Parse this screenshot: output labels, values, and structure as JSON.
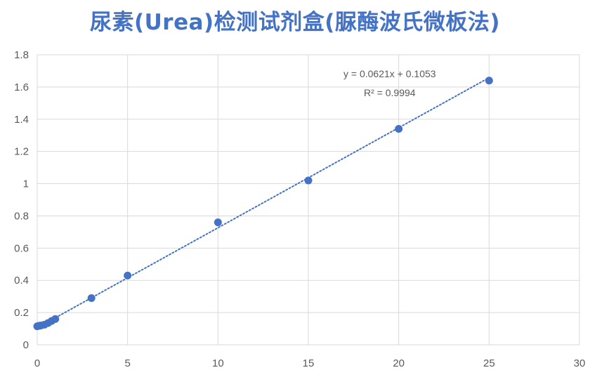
{
  "chart_data": {
    "type": "scatter",
    "title": "尿素(Urea)检测试剂盒(脲酶波氏微板法)",
    "xlabel": "",
    "ylabel": "",
    "xlim": [
      0,
      30
    ],
    "ylim": [
      0,
      1.8
    ],
    "x_ticks": [
      0,
      5,
      10,
      15,
      20,
      25,
      30
    ],
    "y_ticks": [
      0,
      0.2,
      0.4,
      0.6,
      0.8,
      1,
      1.2,
      1.4,
      1.6,
      1.8
    ],
    "x_tick_labels": [
      "0",
      "5",
      "10",
      "15",
      "20",
      "25",
      "30"
    ],
    "y_tick_labels": [
      "0",
      "0.2",
      "0.4",
      "0.6",
      "0.8",
      "1",
      "1.2",
      "1.4",
      "1.6",
      "1.8"
    ],
    "grid": true,
    "series": [
      {
        "points": [
          {
            "x": 0,
            "y": 0.115
          },
          {
            "x": 0.1,
            "y": 0.118
          },
          {
            "x": 0.2,
            "y": 0.12
          },
          {
            "x": 0.4,
            "y": 0.125
          },
          {
            "x": 0.6,
            "y": 0.135
          },
          {
            "x": 0.8,
            "y": 0.148
          },
          {
            "x": 1,
            "y": 0.16
          },
          {
            "x": 3,
            "y": 0.29
          },
          {
            "x": 5,
            "y": 0.43
          },
          {
            "x": 10,
            "y": 0.76
          },
          {
            "x": 15,
            "y": 1.02
          },
          {
            "x": 20,
            "y": 1.34
          },
          {
            "x": 25,
            "y": 1.64
          }
        ]
      }
    ],
    "trendline": {
      "type": "linear",
      "slope": 0.0621,
      "intercept": 0.1053,
      "x_range": [
        0,
        25
      ],
      "style": "dotted",
      "equation": "y = 0.0621x + 0.1053",
      "r_squared": "R² = 0.9994"
    },
    "colors": {
      "title": "#4472c4",
      "marker": "#4472c4",
      "trendline": "#4472c4",
      "grid": "#d9d9d9",
      "tick_text": "#595959"
    }
  }
}
